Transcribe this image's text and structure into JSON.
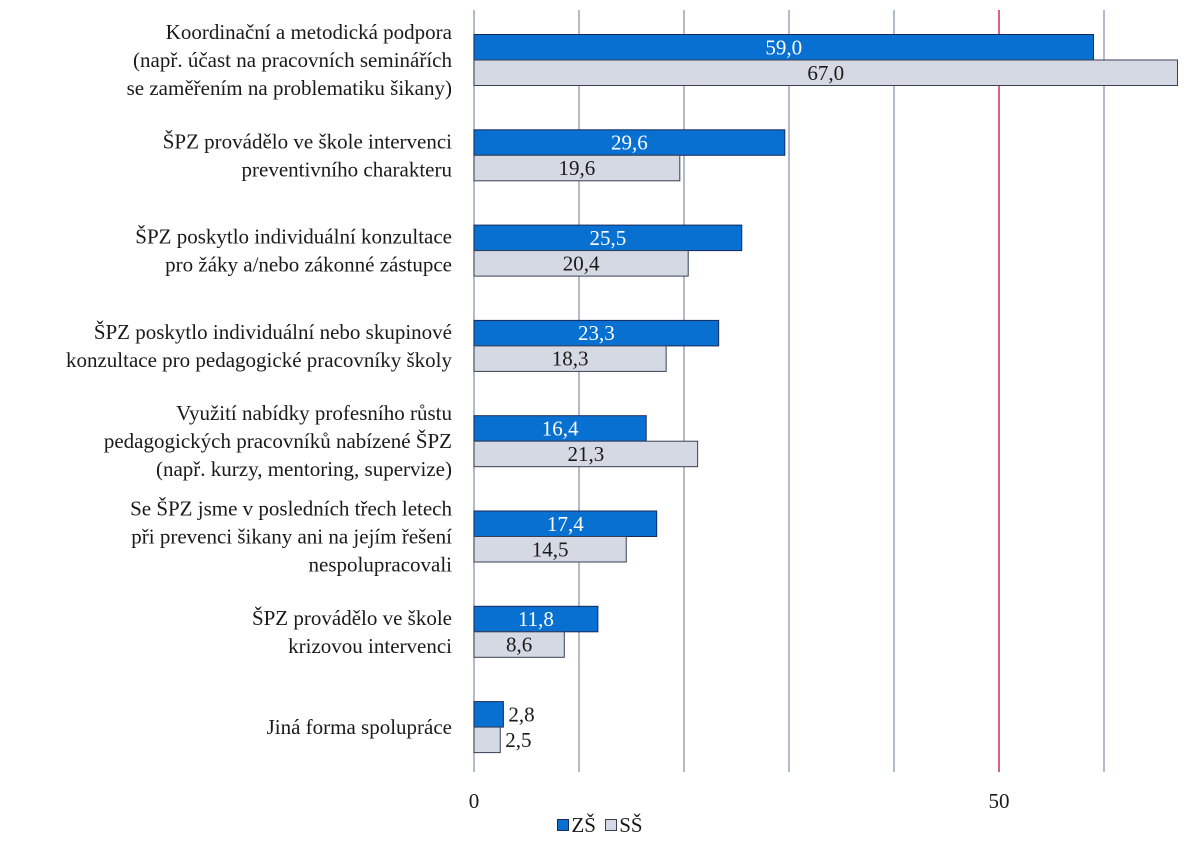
{
  "chart_data": {
    "type": "bar",
    "orientation": "horizontal",
    "categories": [
      [
        "Koordinační a metodická podpora",
        "(např. účast na pracovních seminářích",
        "se zaměřením na problematiku šikany)"
      ],
      [
        "ŠPZ provádělo ve škole intervenci",
        "preventivního charakteru"
      ],
      [
        "ŠPZ poskytlo individuální konzultace",
        "pro žáky a/nebo zákonné zástupce"
      ],
      [
        "ŠPZ poskytlo individuální nebo skupinové",
        "konzultace pro pedagogické pracovníky školy"
      ],
      [
        "Využití nabídky profesního růstu",
        "pedagogických pracovníků nabízené ŠPZ",
        "(např. kurzy, mentoring, supervize)"
      ],
      [
        "Se ŠPZ jsme v posledních třech letech",
        "při prevenci šikany ani na jejím řešení",
        "nespolupracovali"
      ],
      [
        "ŠPZ provádělo ve škole",
        "krizovou intervenci"
      ],
      [
        "Jiná forma spolupráce"
      ]
    ],
    "series": [
      {
        "name": "ZŠ",
        "values": [
          59.0,
          29.6,
          25.5,
          23.3,
          16.4,
          17.4,
          11.8,
          2.8
        ],
        "labels": [
          "59,0",
          "29,6",
          "25,5",
          "23,3",
          "16,4",
          "17,4",
          "11,8",
          "2,8"
        ],
        "color": "#0870d0",
        "label_color": "#ffffff",
        "edge": "#1a2a5a"
      },
      {
        "name": "SŠ",
        "values": [
          67.0,
          19.6,
          20.4,
          18.3,
          21.3,
          14.5,
          8.6,
          2.5
        ],
        "labels": [
          "67,0",
          "19,6",
          "20,4",
          "18,3",
          "21,3",
          "14,5",
          "8,6",
          "2,5"
        ],
        "color": "#d5d9e3",
        "label_color": "#1a1a1a",
        "edge": "#3a3f55"
      }
    ],
    "xlim": [
      0,
      67
    ],
    "xticks": [
      0,
      50
    ],
    "xtick_labels": [
      "0",
      "50"
    ],
    "gridlines": [
      0,
      10,
      20,
      30,
      40,
      50,
      60
    ],
    "reference_line": 50,
    "reference_line_color": "#c0143c",
    "gridline_color": "#8a94b0",
    "grid": true,
    "legend_position": "bottom"
  }
}
